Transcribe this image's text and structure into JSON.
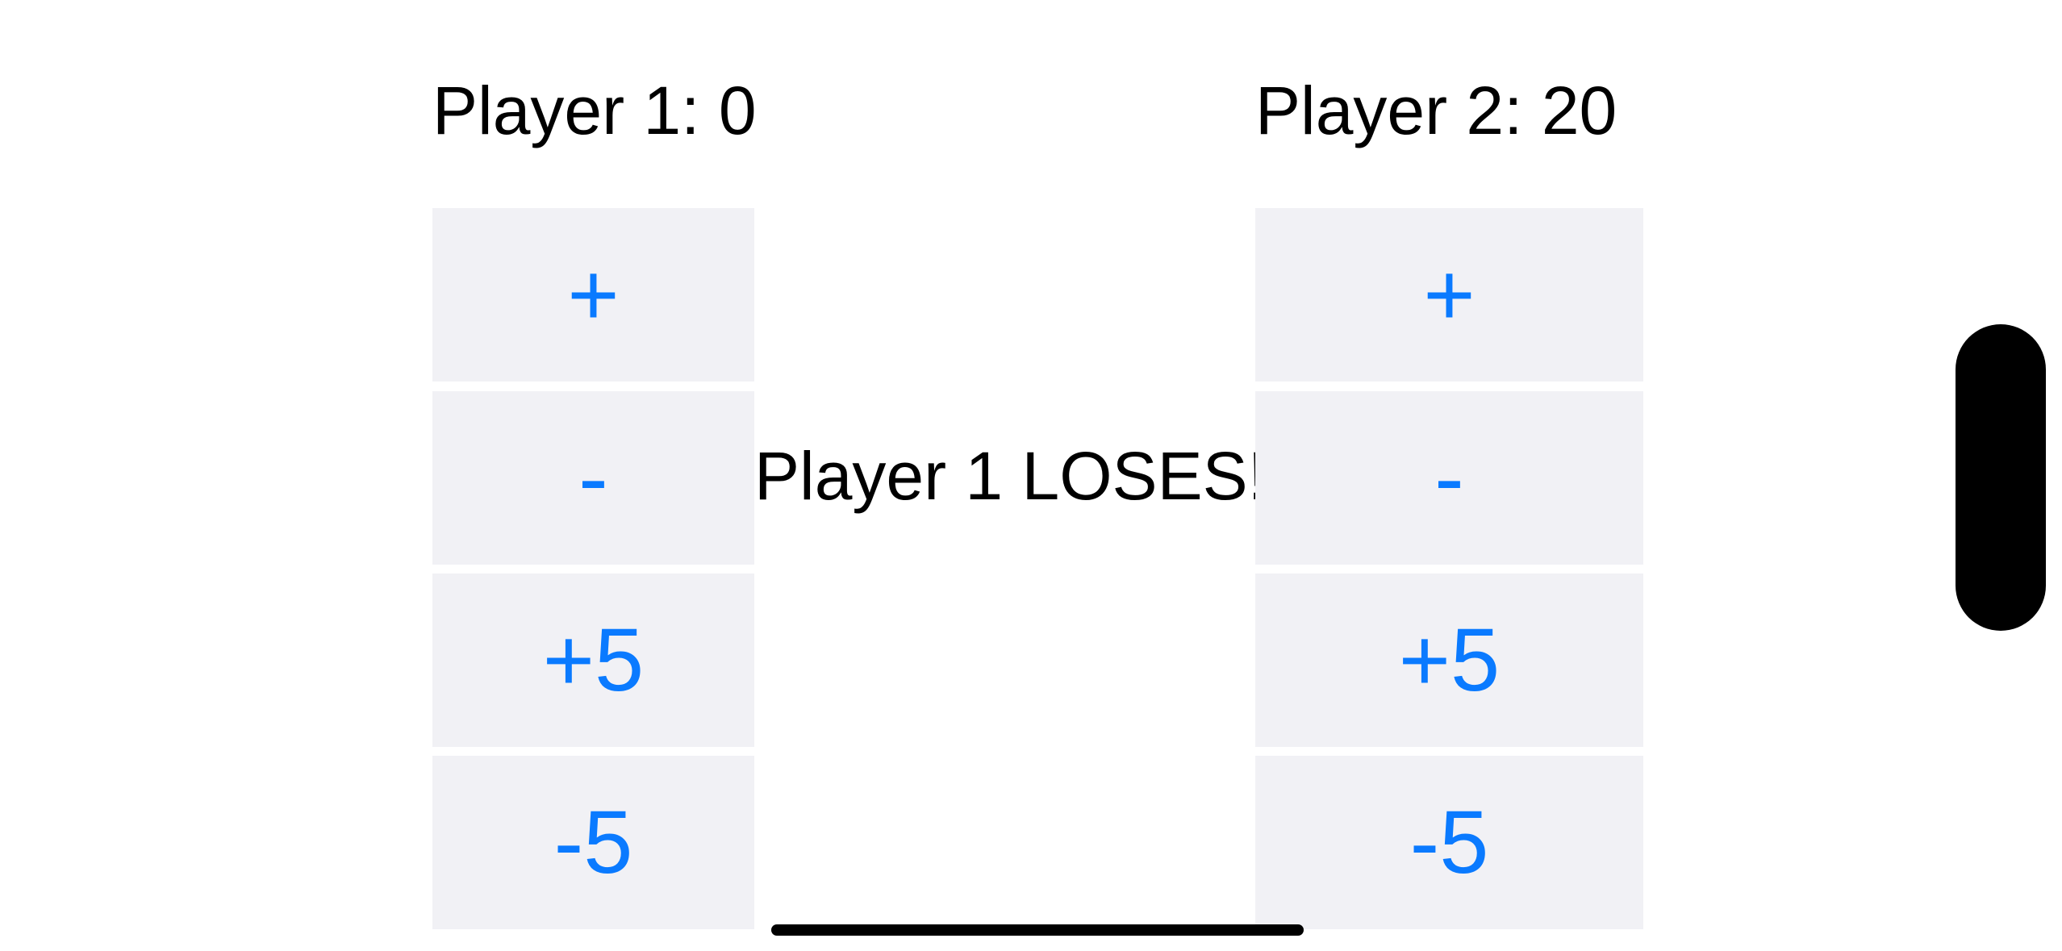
{
  "player1": {
    "score_text": "Player 1: 0",
    "buttons": {
      "plus": "+",
      "minus": "-",
      "plus_five": "+5",
      "minus_five": "-5"
    }
  },
  "player2": {
    "score_text": "Player 2: 20",
    "buttons": {
      "plus": "+",
      "minus": "-",
      "plus_five": "+5",
      "minus_five": "-5"
    }
  },
  "status_message": "Player 1 LOSES!",
  "colors": {
    "accent": "#0a7aff",
    "button_bg": "#f1f1f5",
    "text": "#000000",
    "background": "#ffffff"
  }
}
